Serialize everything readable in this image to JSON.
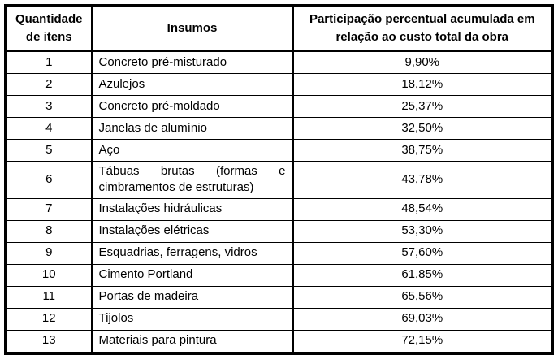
{
  "table": {
    "headers": {
      "quantity": "Quantidade de itens",
      "inputs": "Insumos",
      "percentage": "Participação percentual acumulada em relação ao custo total da obra"
    },
    "rows": [
      {
        "qty": "1",
        "insumo": "Concreto pré-misturado",
        "pct": "9,90%"
      },
      {
        "qty": "2",
        "insumo": "Azulejos",
        "pct": "18,12%"
      },
      {
        "qty": "3",
        "insumo": "Concreto pré-moldado",
        "pct": "25,37%"
      },
      {
        "qty": "4",
        "insumo": "Janelas de alumínio",
        "pct": "32,50%"
      },
      {
        "qty": "5",
        "insumo": "Aço",
        "pct": "38,75%"
      },
      {
        "qty": "6",
        "insumo": "Tábuas brutas (formas e cimbramentos de estruturas)",
        "pct": "43,78%",
        "justified": true
      },
      {
        "qty": "7",
        "insumo": "Instalações hidráulicas",
        "pct": "48,54%"
      },
      {
        "qty": "8",
        "insumo": "Instalações elétricas",
        "pct": "53,30%"
      },
      {
        "qty": "9",
        "insumo": "Esquadrias, ferragens, vidros",
        "pct": "57,60%"
      },
      {
        "qty": "10",
        "insumo": "Cimento Portland",
        "pct": "61,85%"
      },
      {
        "qty": "11",
        "insumo": "Portas de madeira",
        "pct": "65,56%"
      },
      {
        "qty": "12",
        "insumo": "Tijolos",
        "pct": "69,03%"
      },
      {
        "qty": "13",
        "insumo": "Materiais para pintura",
        "pct": "72,15%"
      }
    ]
  }
}
